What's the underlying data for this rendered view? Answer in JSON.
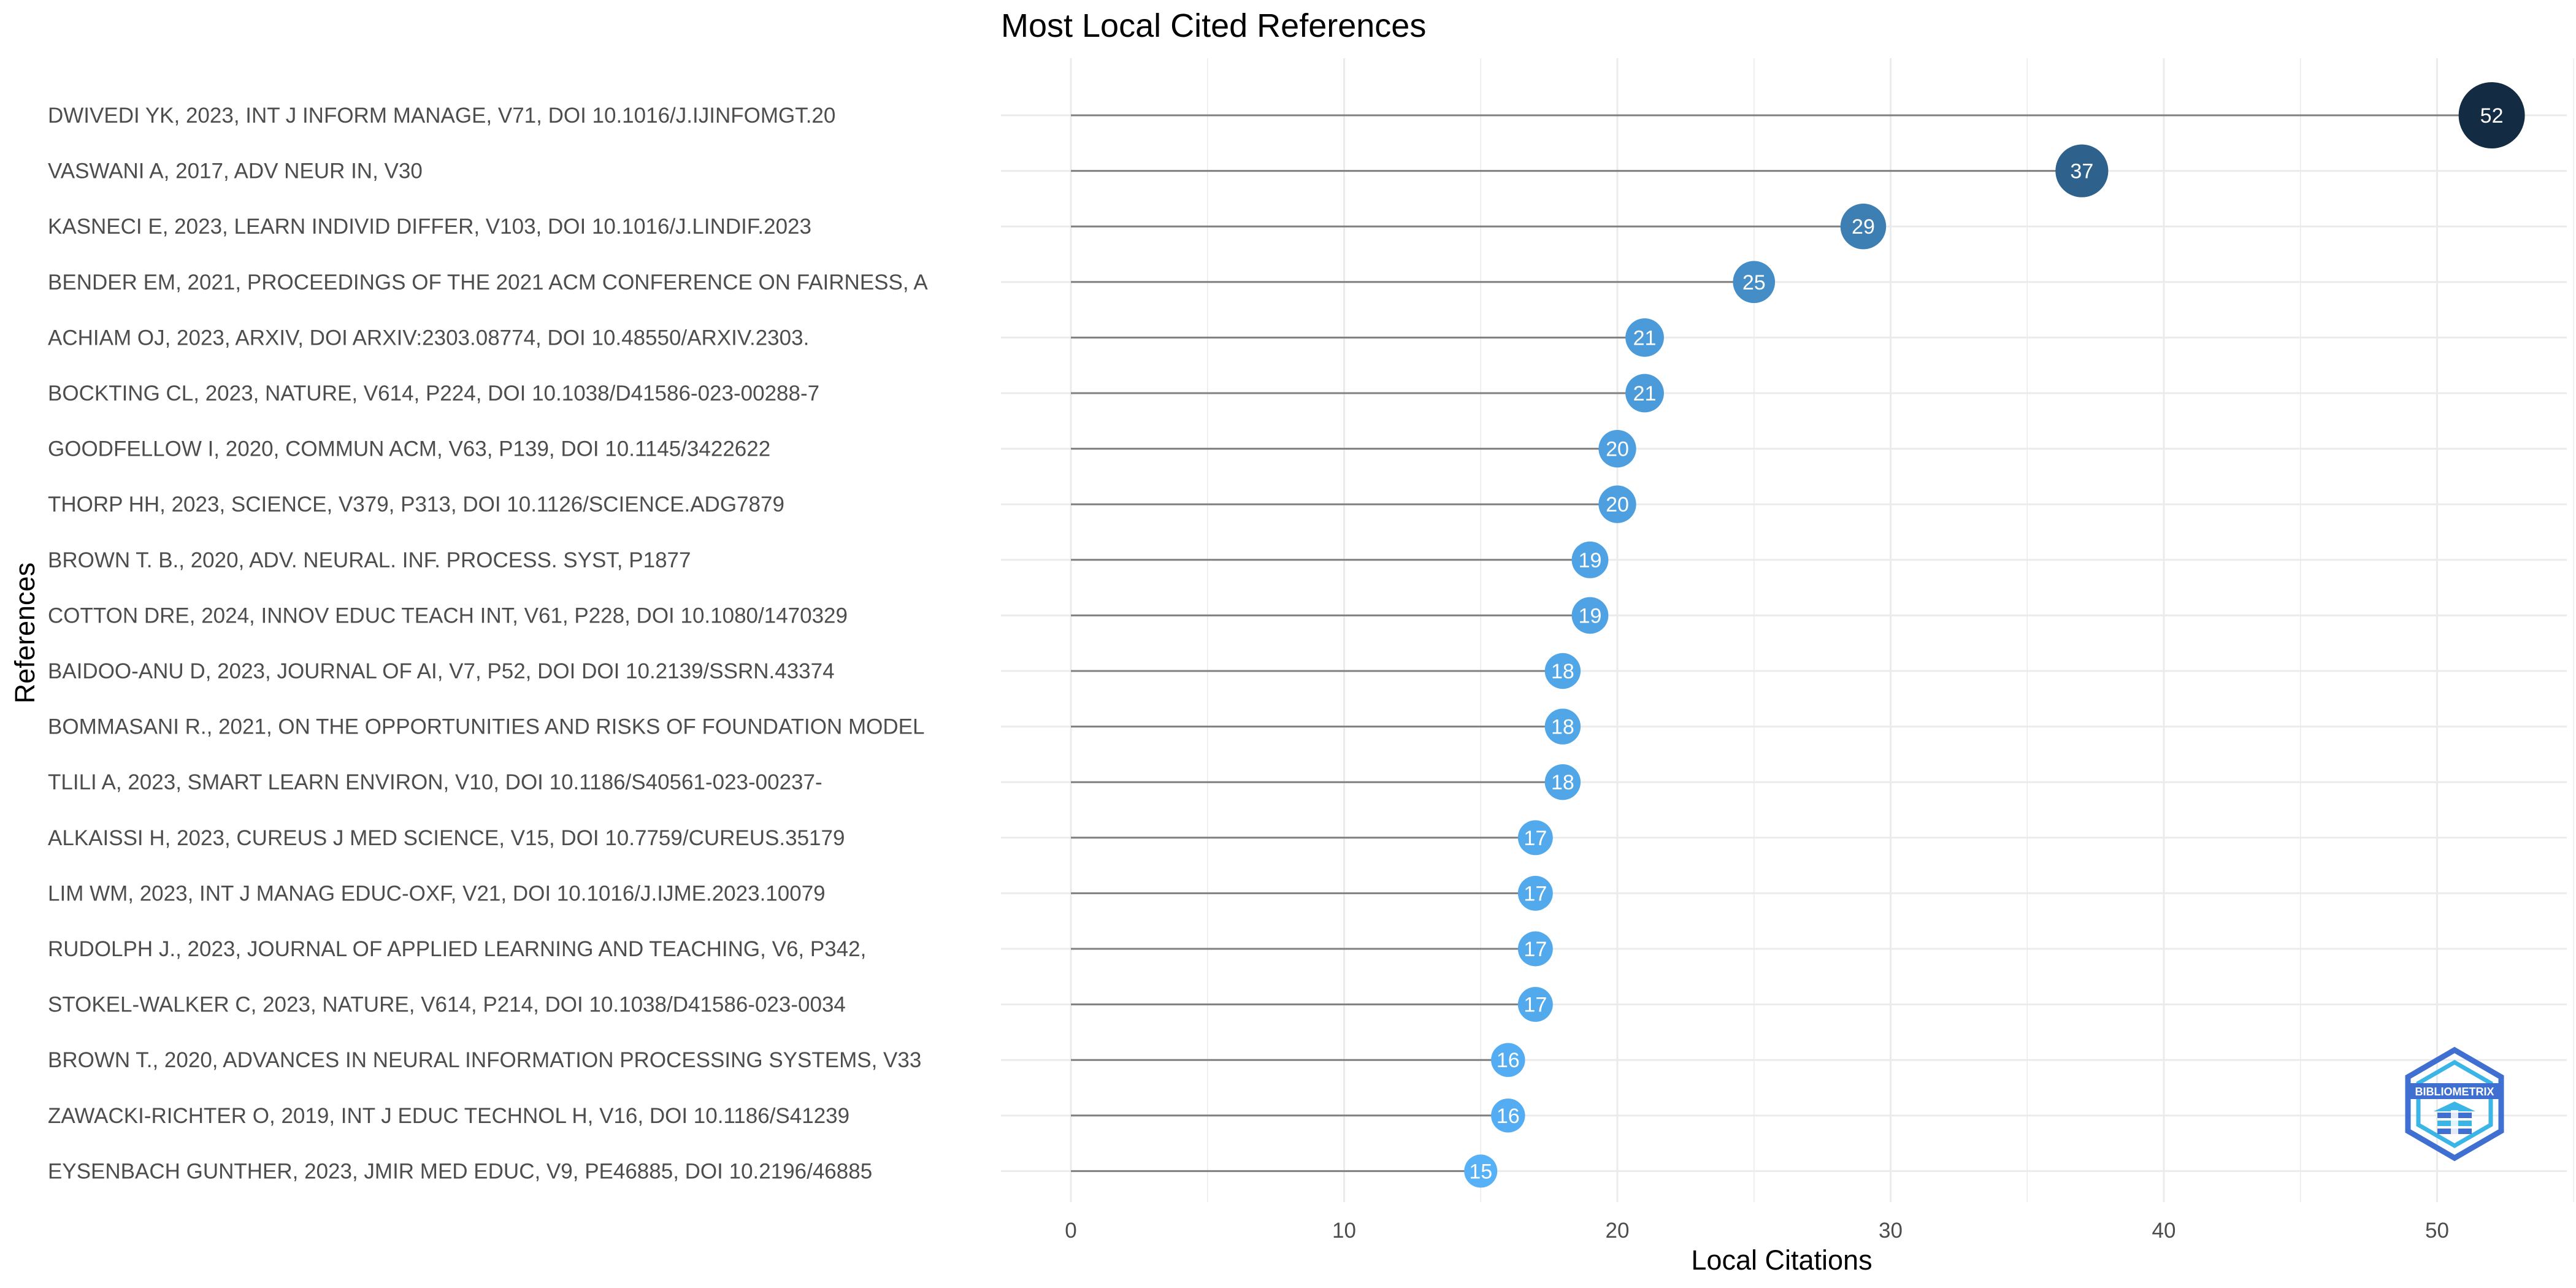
{
  "chart_data": {
    "type": "lollipop",
    "title": "Most Local Cited References",
    "xlabel": "Local Citations",
    "ylabel": "References",
    "xlim": [
      0,
      55
    ],
    "xticks": [
      0,
      10,
      20,
      30,
      40,
      50
    ],
    "grid": true,
    "legend": "none",
    "colors": {
      "low": "#56B1F7",
      "high": "#132B43",
      "segment": "#808080",
      "grid": "#ebebeb"
    },
    "references": [
      "DWIVEDI YK, 2023, INT J INFORM MANAGE, V71, DOI 10.1016/J.IJINFOMGT.20",
      "VASWANI A, 2017, ADV NEUR IN, V30",
      "KASNECI E, 2023, LEARN INDIVID DIFFER, V103, DOI 10.1016/J.LINDIF.2023",
      "BENDER EM, 2021, PROCEEDINGS OF THE 2021 ACM CONFERENCE ON FAIRNESS, A",
      "ACHIAM OJ, 2023, ARXIV, DOI ARXIV:2303.08774, DOI 10.48550/ARXIV.2303.",
      "BOCKTING CL, 2023, NATURE, V614, P224, DOI 10.1038/D41586-023-00288-7",
      "GOODFELLOW I, 2020, COMMUN ACM, V63, P139, DOI 10.1145/3422622",
      "THORP HH, 2023, SCIENCE, V379, P313, DOI 10.1126/SCIENCE.ADG7879",
      "BROWN T. B., 2020, ADV. NEURAL. INF. PROCESS. SYST, P1877",
      "COTTON DRE, 2024, INNOV EDUC TEACH INT, V61, P228, DOI 10.1080/1470329",
      "BAIDOO-ANU D, 2023, JOURNAL OF AI, V7, P52, DOI DOI 10.2139/SSRN.43374",
      "BOMMASANI R., 2021, ON THE OPPORTUNITIES AND RISKS OF FOUNDATION MODEL",
      "TLILI A, 2023, SMART LEARN ENVIRON, V10, DOI 10.1186/S40561-023-00237-",
      "ALKAISSI H, 2023, CUREUS J MED SCIENCE, V15, DOI 10.7759/CUREUS.35179",
      "LIM WM, 2023, INT J MANAG EDUC-OXF, V21, DOI 10.1016/J.IJME.2023.10079",
      "RUDOLPH J., 2023, JOURNAL OF APPLIED LEARNING AND TEACHING, V6, P342,",
      "STOKEL-WALKER C, 2023, NATURE, V614, P214, DOI 10.1038/D41586-023-0034",
      "BROWN T., 2020, ADVANCES IN NEURAL INFORMATION PROCESSING SYSTEMS, V33",
      "ZAWACKI-RICHTER O, 2019, INT J EDUC TECHNOL H, V16, DOI 10.1186/S41239",
      "EYSENBACH GUNTHER, 2023, JMIR MED EDUC, V9, PE46885, DOI 10.2196/46885"
    ],
    "values": [
      52,
      37,
      29,
      25,
      21,
      21,
      20,
      20,
      19,
      19,
      18,
      18,
      18,
      17,
      17,
      17,
      17,
      16,
      16,
      15
    ]
  },
  "logo": {
    "text": "BIBLIOMETRIX",
    "outer_color": "#3f6fd0",
    "inner_color": "#3bb4e6"
  }
}
